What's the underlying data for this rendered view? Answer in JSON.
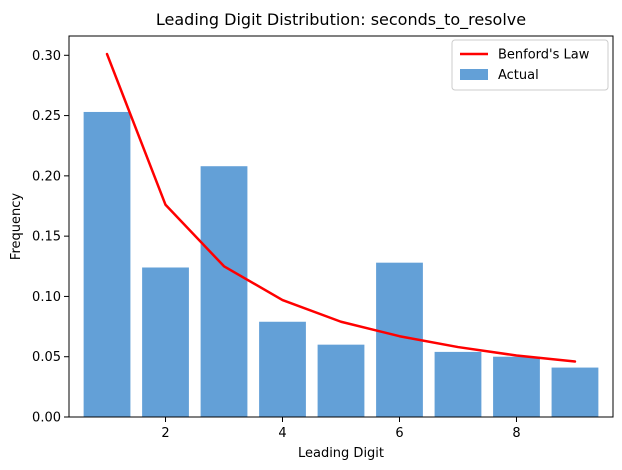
{
  "chart_data": {
    "type": "bar",
    "title": "Leading Digit Distribution: seconds_to_resolve",
    "xlabel": "Leading Digit",
    "ylabel": "Frequency",
    "x": [
      1,
      2,
      3,
      4,
      5,
      6,
      7,
      8,
      9
    ],
    "xlim": [
      0.35,
      9.65
    ],
    "ylim": [
      0,
      0.316
    ],
    "xticks": [
      2,
      4,
      6,
      8
    ],
    "xtick_labels": [
      "2",
      "4",
      "6",
      "8"
    ],
    "yticks": [
      0,
      0.05,
      0.1,
      0.15,
      0.2,
      0.25,
      0.3
    ],
    "ytick_labels": [
      "0.00",
      "0.05",
      "0.10",
      "0.15",
      "0.20",
      "0.25",
      "0.30"
    ],
    "grid": false,
    "legend_position": "top-right",
    "series": [
      {
        "name": "Actual",
        "type": "bar",
        "color": "#5b9bd5",
        "values": [
          0.253,
          0.124,
          0.208,
          0.079,
          0.06,
          0.128,
          0.054,
          0.05,
          0.041
        ]
      },
      {
        "name": "Benford's Law",
        "type": "line",
        "color": "#ff0000",
        "values": [
          0.301,
          0.176,
          0.125,
          0.097,
          0.079,
          0.067,
          0.058,
          0.051,
          0.046
        ]
      }
    ]
  }
}
